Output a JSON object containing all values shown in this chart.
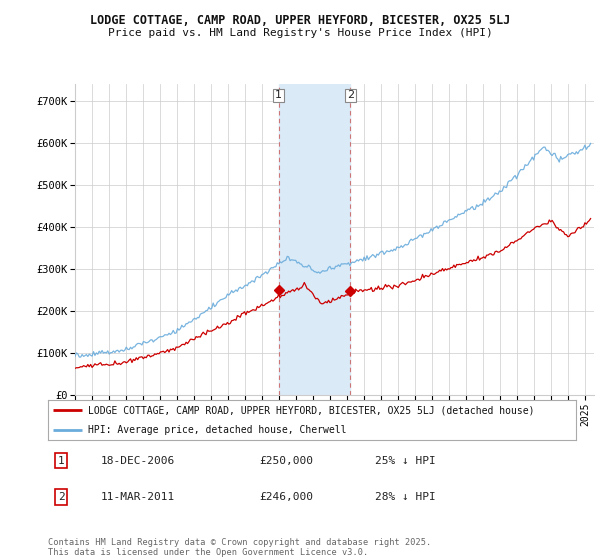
{
  "title1": "LODGE COTTAGE, CAMP ROAD, UPPER HEYFORD, BICESTER, OX25 5LJ",
  "title2": "Price paid vs. HM Land Registry's House Price Index (HPI)",
  "ylabel_ticks": [
    "£0",
    "£100K",
    "£200K",
    "£300K",
    "£400K",
    "£500K",
    "£600K",
    "£700K"
  ],
  "ytick_vals": [
    0,
    100000,
    200000,
    300000,
    400000,
    500000,
    600000,
    700000
  ],
  "ylim": [
    0,
    740000
  ],
  "xlim_start": 1995.0,
  "xlim_end": 2025.5,
  "sale1_x": 2006.96,
  "sale1_y": 250000,
  "sale2_x": 2011.18,
  "sale2_y": 246000,
  "hpi_color": "#6aacdc",
  "price_color": "#cc0000",
  "shade_color": "#daeaf7",
  "vline_color": "#cc7777",
  "legend_line1": "LODGE COTTAGE, CAMP ROAD, UPPER HEYFORD, BICESTER, OX25 5LJ (detached house)",
  "legend_line2": "HPI: Average price, detached house, Cherwell",
  "table_row1": [
    "1",
    "18-DEC-2006",
    "£250,000",
    "25% ↓ HPI"
  ],
  "table_row2": [
    "2",
    "11-MAR-2011",
    "£246,000",
    "28% ↓ HPI"
  ],
  "footnote": "Contains HM Land Registry data © Crown copyright and database right 2025.\nThis data is licensed under the Open Government Licence v3.0.",
  "bg_color": "#ffffff",
  "grid_color": "#cccccc"
}
